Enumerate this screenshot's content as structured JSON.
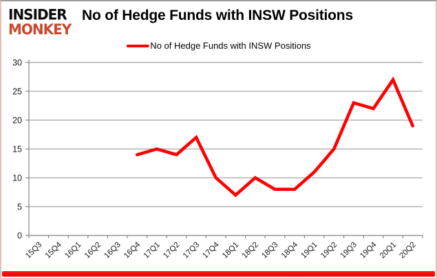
{
  "header": {
    "logo_line1": "INSIDER",
    "logo_line2": "MONKEY",
    "title": "No of Hedge Funds with INSW Positions"
  },
  "legend": {
    "label": "No of Hedge Funds with INSW Positions",
    "line_color": "#ff0000"
  },
  "colors": {
    "series_red": "#ff0000",
    "logo_red": "#c74a2f",
    "bottom_bar_red": "#f40000",
    "grid_gray": "#8c8c8c",
    "axis_gray": "#858585",
    "label_color": "#1a1a1a"
  },
  "chart_data": {
    "type": "line",
    "title": "No of Hedge Funds with INSW Positions",
    "categories": [
      "15Q3",
      "15Q4",
      "16Q1",
      "16Q2",
      "16Q3",
      "16Q4",
      "17Q1",
      "17Q2",
      "17Q3",
      "17Q4",
      "18Q1",
      "18Q2",
      "18Q3",
      "18Q4",
      "19Q1",
      "19Q2",
      "19Q3",
      "19Q4",
      "20Q1",
      "20Q2"
    ],
    "series": [
      {
        "name": "No of Hedge Funds with INSW Positions",
        "color": "#ff0000",
        "values": [
          null,
          null,
          null,
          null,
          null,
          14,
          15,
          14,
          17,
          10,
          7,
          10,
          8,
          8,
          11,
          15,
          23,
          22,
          27,
          19
        ]
      }
    ],
    "ylim": [
      0,
      30
    ],
    "yticks": [
      0,
      5,
      10,
      15,
      20,
      25,
      30
    ],
    "xlabel": "",
    "ylabel": "",
    "grid": true,
    "legend_position": "top-center",
    "x_label_rotation": -45
  }
}
